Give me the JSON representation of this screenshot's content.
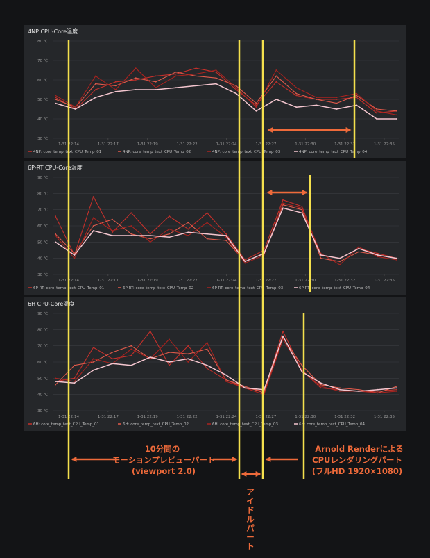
{
  "x_ticks": [
    "1-31 22:14",
    "1-31 22:17",
    "1-31 22:19",
    "1-31 22:22",
    "1-31 22:24",
    "1-31 22:27",
    "1-31 22:30",
    "1-31 22:32",
    "1-31 22:35"
  ],
  "colors": {
    "background": "#131416",
    "panel": "#25272a",
    "marker_line": "#f4e04d",
    "annotation": "#ee6a3a",
    "series": [
      "#c4302b",
      "#e05a4b",
      "#a9231f",
      "#f4c6cf"
    ]
  },
  "chart_data": [
    {
      "type": "line",
      "title": "4NP CPU-Core温度",
      "y_ticks": [
        "30 ℃",
        "40 ℃",
        "50 ℃",
        "60 ℃",
        "70 ℃",
        "80 ℃"
      ],
      "ylim": [
        30,
        80
      ],
      "grid": true,
      "legend": "bottom",
      "series": [
        {
          "name": "4NP: core_temp_text_CPU_Temp_01",
          "values": [
            51,
            45,
            55,
            59,
            60,
            62,
            63,
            66,
            64,
            55,
            47,
            59,
            52,
            50,
            50,
            51,
            43,
            44
          ]
        },
        {
          "name": "4NP: core_temp_text_CPU_Temp_02",
          "values": [
            50,
            46,
            58,
            57,
            61,
            59,
            64,
            62,
            61,
            57,
            48,
            62,
            53,
            50,
            48,
            52,
            45,
            44
          ]
        },
        {
          "name": "4NP: core_temp_text_CPU_Temp_03",
          "values": [
            52,
            46,
            62,
            55,
            66,
            56,
            62,
            63,
            65,
            56,
            46,
            65,
            56,
            51,
            51,
            53,
            44,
            42
          ]
        },
        {
          "name": "4NP: core_temp_text_CPU_Temp_04",
          "values": [
            48,
            45,
            51,
            54,
            55,
            55,
            56,
            57,
            58,
            53,
            44,
            50,
            46,
            47,
            45,
            47,
            40,
            40
          ]
        }
      ]
    },
    {
      "type": "line",
      "title": "6P-RT CPU-Core温度",
      "y_ticks": [
        "30 ℃",
        "40 ℃",
        "50 ℃",
        "60 ℃",
        "70 ℃",
        "80 ℃",
        "90 ℃"
      ],
      "ylim": [
        30,
        90
      ],
      "grid": true,
      "legend": "bottom",
      "series": [
        {
          "name": "6P-RT: core_temp_text_CPU_Temp_01",
          "values": [
            66,
            42,
            78,
            56,
            68,
            55,
            66,
            58,
            68,
            55,
            39,
            45,
            76,
            72,
            42,
            40,
            46,
            43,
            40
          ]
        },
        {
          "name": "6P-RT: core_temp_text_CPU_Temp_02",
          "values": [
            55,
            43,
            60,
            64,
            55,
            52,
            55,
            62,
            52,
            51,
            38,
            43,
            73,
            70,
            40,
            38,
            44,
            42,
            40
          ]
        },
        {
          "name": "6P-RT: core_temp_text_CPU_Temp_03",
          "values": [
            54,
            40,
            65,
            57,
            60,
            50,
            58,
            54,
            62,
            53,
            37,
            42,
            74,
            71,
            43,
            36,
            47,
            41,
            39
          ]
        },
        {
          "name": "6P-RT: core_temp_text_CPU_Temp_04",
          "values": [
            50,
            42,
            57,
            54,
            54,
            54,
            53,
            56,
            55,
            54,
            38,
            43,
            71,
            68,
            42,
            40,
            46,
            42,
            40
          ]
        }
      ]
    },
    {
      "type": "line",
      "title": "6H CPU-Core温度",
      "y_ticks": [
        "30 ℃",
        "40 ℃",
        "50 ℃",
        "60 ℃",
        "70 ℃",
        "80 ℃",
        "90 ℃"
      ],
      "ylim": [
        30,
        90
      ],
      "grid": true,
      "legend": "bottom",
      "series": [
        {
          "name": "6H: core_temp_text_CPU_Temp_01",
          "values": [
            48,
            50,
            69,
            62,
            64,
            79,
            58,
            70,
            56,
            49,
            44,
            42,
            79,
            55,
            44,
            43,
            42,
            42,
            43
          ]
        },
        {
          "name": "6H: core_temp_text_CPU_Temp_02",
          "values": [
            46,
            58,
            60,
            66,
            70,
            62,
            66,
            65,
            68,
            49,
            45,
            41,
            75,
            58,
            46,
            44,
            43,
            41,
            45
          ]
        },
        {
          "name": "6H: core_temp_text_CPU_Temp_03",
          "values": [
            50,
            48,
            62,
            59,
            68,
            62,
            74,
            60,
            72,
            48,
            44,
            40,
            74,
            55,
            45,
            42,
            42,
            41,
            42
          ]
        },
        {
          "name": "6H: core_temp_text_CPU_Temp_04",
          "values": [
            48,
            47,
            55,
            59,
            58,
            63,
            60,
            62,
            58,
            52,
            44,
            43,
            76,
            54,
            47,
            43,
            42,
            43,
            44
          ]
        }
      ]
    }
  ],
  "annotations": {
    "motion_preview": [
      "10分間の",
      "モーションプレビューパート",
      "(viewport 2.0)"
    ],
    "idle": "アイドルパート",
    "render": [
      "Arnold Renderによる",
      "CPUレンダリングパート",
      "(フルHD 1920×1080)"
    ]
  }
}
